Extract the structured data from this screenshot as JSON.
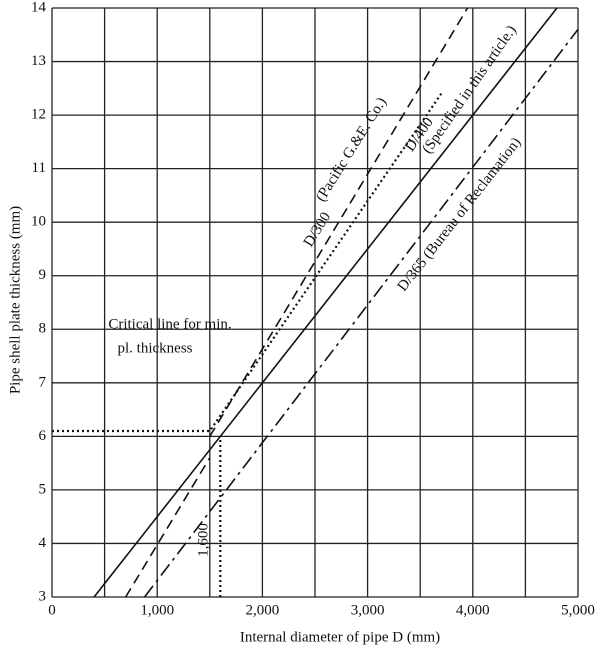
{
  "chart_data": {
    "type": "line",
    "xlabel": "Internal diameter of pipe D (mm)",
    "ylabel": "Pipe shell plate thickness (mm)",
    "xlim": [
      0,
      5000
    ],
    "xticks": [
      0,
      {
        "value": 1000,
        "label": "1,000"
      },
      {
        "value": 2000,
        "label": "2,000"
      },
      {
        "value": 3000,
        "label": "3,000"
      },
      {
        "value": 4000,
        "label": "4,000"
      },
      {
        "value": 5000,
        "label": "5,000"
      }
    ],
    "ylim": [
      3,
      14
    ],
    "yticks": [
      3,
      4,
      5,
      6,
      7,
      8,
      9,
      10,
      11,
      12,
      13,
      14
    ],
    "grid": true,
    "series": [
      {
        "color": "#111111",
        "dash": "solid",
        "x": [
          400,
          4800
        ],
        "values": [
          3,
          14
        ]
      },
      {
        "color": "#111111",
        "dash": "dashdot",
        "x": [
          880,
          5000
        ],
        "values": [
          3,
          13.6
        ]
      },
      {
        "color": "#111111",
        "dash": "dashed",
        "x": [
          1500,
          3950
        ],
        "values": [
          6,
          14
        ]
      },
      {
        "color": "#111111",
        "dash": "dashed",
        "x": [
          700,
          1500
        ],
        "values": [
          3,
          5.6
        ]
      },
      {
        "color": "#111111",
        "dash": "dotted",
        "x": [
          0,
          1500,
          3700
        ],
        "values": [
          6.1,
          6.1,
          12.4
        ]
      },
      {
        "color": "#111111",
        "dash": "dotted",
        "x": [
          1600,
          1600
        ],
        "values": [
          3,
          6
        ]
      }
    ],
    "annotations": [
      "(Pacific G.&E. Co.)",
      "D/300",
      "(Specified in this article.)",
      "D/400",
      "D/365 (Bureau of Reclamation)",
      "Critical line for min.",
      "pl. thickness",
      "1,600"
    ]
  }
}
